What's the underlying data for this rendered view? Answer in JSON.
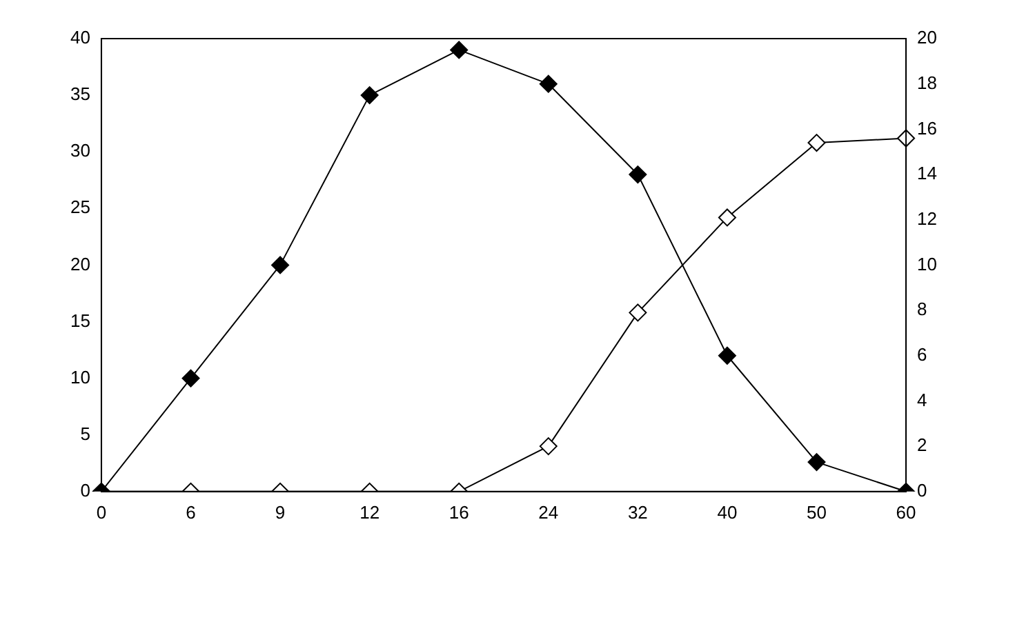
{
  "chart_data": {
    "type": "line",
    "categories": [
      "0",
      "6",
      "9",
      "12",
      "16",
      "24",
      "32",
      "40",
      "50",
      "60"
    ],
    "series": [
      {
        "color": "#000000",
        "values": [
          0,
          10,
          20,
          35,
          39,
          36,
          28,
          12,
          2.6,
          0
        ]
      },
      {
        "color": "#000000",
        "colors": [
          "#ffffff",
          "#ffffff",
          "#ffffff",
          "#ffffff",
          "#ffffff",
          "#ffffff",
          "#ffffff",
          "#ffffff",
          "#ffffff",
          "#ffffff"
        ],
        "axis": "y2",
        "values": [
          0,
          0,
          0,
          0,
          0,
          2,
          7.9,
          12.1,
          15.4,
          15.6
        ]
      }
    ],
    "ylim": [
      0,
      40
    ],
    "yticks": [
      0,
      5,
      10,
      15,
      20,
      25,
      30,
      35,
      40
    ],
    "y2lim": [
      0,
      20
    ],
    "y2ticks": [
      0,
      2,
      4,
      6,
      8,
      10,
      12,
      14,
      16,
      18,
      20
    ],
    "grid": false,
    "legend": false,
    "marker": "diamond",
    "line_style": "solid"
  }
}
